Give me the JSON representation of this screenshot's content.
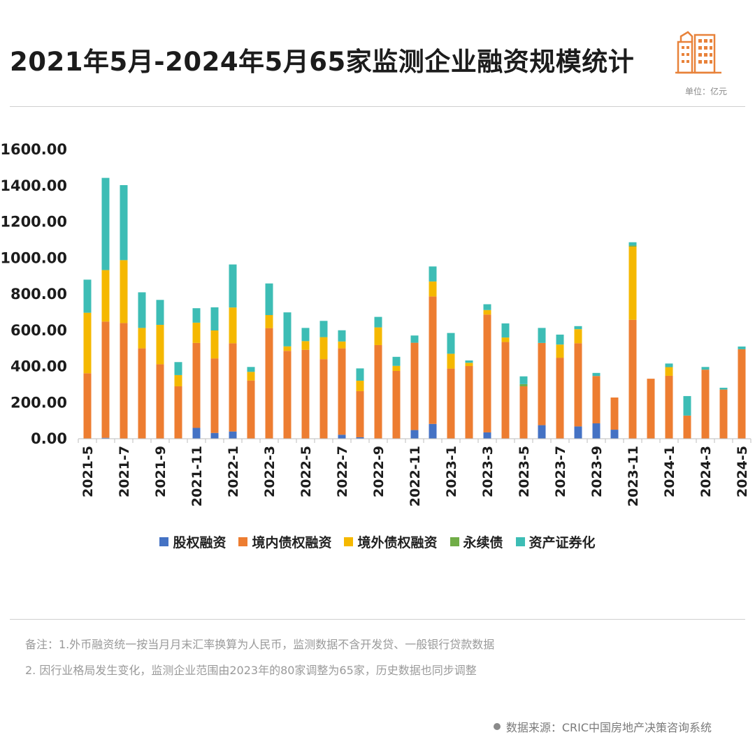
{
  "header": {
    "title": "2021年5月-2024年5月65家监测企业融资规模统计",
    "unit": "单位：亿元"
  },
  "colors": {
    "equity": "#4472C4",
    "domestic": "#ED7D31",
    "overseas": "#F5B800",
    "perpetual": "#70AD47",
    "abs": "#3DBDB5"
  },
  "chart_data": {
    "type": "bar",
    "stacked": true,
    "ylim": [
      0,
      1600
    ],
    "yticks": [
      "0.00",
      "200.00",
      "400.00",
      "600.00",
      "800.00",
      "1000.00",
      "1200.00",
      "1400.00",
      "1600.00"
    ],
    "categories": [
      "2021-5",
      "2021-6",
      "2021-7",
      "2021-8",
      "2021-9",
      "2021-10",
      "2021-11",
      "2021-12",
      "2022-1",
      "2022-2",
      "2022-3",
      "2022-4",
      "2022-5",
      "2022-6",
      "2022-7",
      "2022-8",
      "2022-9",
      "2022-10",
      "2022-11",
      "2022-12",
      "2023-1",
      "2023-2",
      "2023-3",
      "2023-4",
      "2023-5",
      "2023-6",
      "2023-7",
      "2023-8",
      "2023-9",
      "2023-10",
      "2023-11",
      "2023-12",
      "2024-1",
      "2024-2",
      "2024-3",
      "2024-4",
      "2024-5"
    ],
    "xtick_labels": [
      "2021-5",
      "2021-7",
      "2021-9",
      "2021-11",
      "2022-1",
      "2022-3",
      "2022-5",
      "2022-7",
      "2022-9",
      "2022-11",
      "2023-1",
      "2023-3",
      "2023-5",
      "2023-7",
      "2023-9",
      "2023-11",
      "2024-1",
      "2024-3",
      "2024-5"
    ],
    "series": [
      {
        "name": "股权融资",
        "color_key": "equity",
        "values": [
          0,
          5,
          0,
          0,
          0,
          0,
          60,
          32,
          40,
          0,
          0,
          0,
          0,
          0,
          22,
          8,
          0,
          0,
          48,
          82,
          0,
          0,
          35,
          0,
          0,
          75,
          0,
          68,
          85,
          50,
          0,
          0,
          0,
          0,
          0,
          0,
          0
        ]
      },
      {
        "name": "境内债权融资",
        "color_key": "domestic",
        "values": [
          362,
          643,
          640,
          500,
          412,
          290,
          470,
          412,
          488,
          322,
          612,
          486,
          492,
          440,
          478,
          255,
          518,
          375,
          483,
          705,
          388,
          402,
          652,
          535,
          290,
          455,
          448,
          460,
          262,
          178,
          658,
          332,
          348,
          128,
          382,
          272,
          495
        ]
      },
      {
        "name": "境外债权融资",
        "color_key": "overseas",
        "values": [
          335,
          285,
          348,
          113,
          218,
          62,
          112,
          155,
          198,
          48,
          72,
          25,
          48,
          122,
          38,
          58,
          98,
          28,
          0,
          83,
          82,
          18,
          25,
          25,
          0,
          0,
          73,
          78,
          0,
          0,
          405,
          0,
          48,
          0,
          0,
          0,
          0
        ]
      },
      {
        "name": "永续债",
        "color_key": "perpetual",
        "values": [
          0,
          0,
          0,
          0,
          0,
          0,
          0,
          0,
          0,
          0,
          0,
          0,
          0,
          0,
          0,
          0,
          0,
          0,
          0,
          0,
          0,
          0,
          0,
          0,
          12,
          0,
          0,
          0,
          0,
          0,
          6,
          0,
          0,
          0,
          0,
          0,
          0
        ]
      },
      {
        "name": "资产证券化",
        "color_key": "abs",
        "values": [
          183,
          510,
          415,
          197,
          138,
          72,
          80,
          128,
          238,
          27,
          175,
          188,
          73,
          90,
          62,
          68,
          58,
          50,
          40,
          83,
          115,
          13,
          32,
          78,
          43,
          83,
          55,
          17,
          17,
          0,
          18,
          0,
          20,
          108,
          15,
          10,
          15
        ]
      }
    ]
  },
  "notes": {
    "line1": "备注：1.外币融资统一按当月月末汇率换算为人民币，监测数据不含开发贷、一般银行贷款数据",
    "line2": "2. 因行业格局发生变化，监测企业范围由2023年的80家调整为65家，历史数据也同步调整"
  },
  "source": "数据来源：CRIC中国房地产决策咨询系统"
}
